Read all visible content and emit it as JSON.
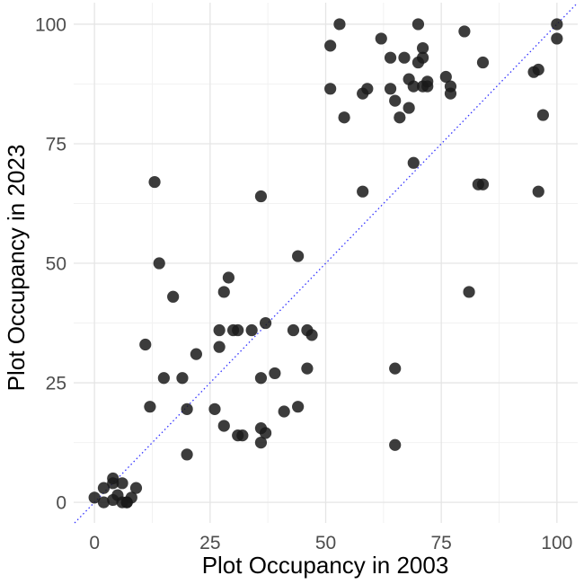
{
  "chart_data": {
    "type": "scatter",
    "xlabel": "Plot Occupancy in 2003",
    "ylabel": "Plot Occupancy in 2023",
    "xlim": [
      -4.5,
      104.5
    ],
    "ylim": [
      -4.3,
      104.5
    ],
    "xticks": [
      0,
      25,
      50,
      75,
      100
    ],
    "yticks": [
      0,
      25,
      50,
      75,
      100
    ],
    "xtick_labels": [
      "0",
      "25",
      "50",
      "75",
      "100"
    ],
    "ytick_labels": [
      "0",
      "25",
      "50",
      "75",
      "100"
    ],
    "grid": true,
    "legend": "none",
    "reference_line": {
      "type": "identity",
      "style": "dotted",
      "color": "#3333ff"
    },
    "point_color": "#1a1a1a",
    "points": [
      {
        "x": 0,
        "y": 1
      },
      {
        "x": 2,
        "y": 3
      },
      {
        "x": 2,
        "y": 0
      },
      {
        "x": 4,
        "y": 5
      },
      {
        "x": 4,
        "y": 4
      },
      {
        "x": 4,
        "y": 0.5
      },
      {
        "x": 5,
        "y": 1.5
      },
      {
        "x": 6,
        "y": 4
      },
      {
        "x": 6,
        "y": 0
      },
      {
        "x": 7,
        "y": 0
      },
      {
        "x": 7,
        "y": 0
      },
      {
        "x": 8,
        "y": 1
      },
      {
        "x": 9,
        "y": 3
      },
      {
        "x": 11,
        "y": 33
      },
      {
        "x": 12,
        "y": 20
      },
      {
        "x": 13,
        "y": 67
      },
      {
        "x": 14,
        "y": 50
      },
      {
        "x": 15,
        "y": 26
      },
      {
        "x": 17,
        "y": 43
      },
      {
        "x": 19,
        "y": 26
      },
      {
        "x": 20,
        "y": 19.5
      },
      {
        "x": 20,
        "y": 10
      },
      {
        "x": 22,
        "y": 31
      },
      {
        "x": 26,
        "y": 19.5
      },
      {
        "x": 27,
        "y": 36
      },
      {
        "x": 27,
        "y": 32.5
      },
      {
        "x": 28,
        "y": 44
      },
      {
        "x": 28,
        "y": 16
      },
      {
        "x": 29,
        "y": 47
      },
      {
        "x": 30,
        "y": 36
      },
      {
        "x": 31,
        "y": 36
      },
      {
        "x": 31,
        "y": 14
      },
      {
        "x": 32,
        "y": 14
      },
      {
        "x": 34,
        "y": 36
      },
      {
        "x": 36,
        "y": 64
      },
      {
        "x": 36,
        "y": 26
      },
      {
        "x": 36,
        "y": 15.5
      },
      {
        "x": 36,
        "y": 12.5
      },
      {
        "x": 37,
        "y": 37.5
      },
      {
        "x": 37,
        "y": 14.5
      },
      {
        "x": 39,
        "y": 27
      },
      {
        "x": 41,
        "y": 19
      },
      {
        "x": 43,
        "y": 36
      },
      {
        "x": 44,
        "y": 51.5
      },
      {
        "x": 44,
        "y": 20
      },
      {
        "x": 46,
        "y": 36
      },
      {
        "x": 46,
        "y": 28
      },
      {
        "x": 47,
        "y": 35
      },
      {
        "x": 51,
        "y": 95.5
      },
      {
        "x": 51,
        "y": 86.5
      },
      {
        "x": 53,
        "y": 100
      },
      {
        "x": 54,
        "y": 80.5
      },
      {
        "x": 58,
        "y": 85.5
      },
      {
        "x": 58,
        "y": 65
      },
      {
        "x": 59,
        "y": 86.5
      },
      {
        "x": 62,
        "y": 97
      },
      {
        "x": 64,
        "y": 93
      },
      {
        "x": 64,
        "y": 86.5
      },
      {
        "x": 65,
        "y": 84
      },
      {
        "x": 65,
        "y": 28
      },
      {
        "x": 65,
        "y": 12
      },
      {
        "x": 66,
        "y": 80.5
      },
      {
        "x": 67,
        "y": 93
      },
      {
        "x": 68,
        "y": 88.5
      },
      {
        "x": 68,
        "y": 82.5
      },
      {
        "x": 69,
        "y": 87
      },
      {
        "x": 69,
        "y": 71
      },
      {
        "x": 70,
        "y": 100
      },
      {
        "x": 70,
        "y": 92
      },
      {
        "x": 71,
        "y": 95
      },
      {
        "x": 71,
        "y": 93
      },
      {
        "x": 71,
        "y": 87
      },
      {
        "x": 72,
        "y": 88
      },
      {
        "x": 72,
        "y": 87
      },
      {
        "x": 76,
        "y": 89
      },
      {
        "x": 77,
        "y": 87
      },
      {
        "x": 77,
        "y": 85.5
      },
      {
        "x": 80,
        "y": 98.5
      },
      {
        "x": 81,
        "y": 44
      },
      {
        "x": 83,
        "y": 66.5
      },
      {
        "x": 84,
        "y": 92
      },
      {
        "x": 84,
        "y": 66.5
      },
      {
        "x": 95,
        "y": 90
      },
      {
        "x": 96,
        "y": 90.5
      },
      {
        "x": 96,
        "y": 65
      },
      {
        "x": 97,
        "y": 81
      },
      {
        "x": 100,
        "y": 100
      },
      {
        "x": 100,
        "y": 97
      }
    ]
  }
}
